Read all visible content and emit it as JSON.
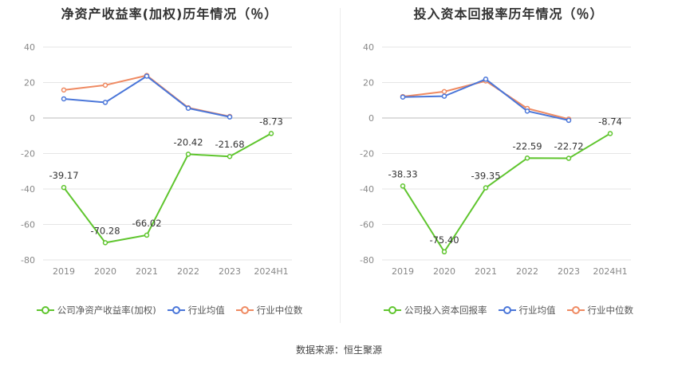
{
  "source": "数据来源：恒生聚源",
  "chart_data": [
    {
      "type": "line",
      "title": "净资产收益率(加权)历年情况（％）",
      "categories": [
        "2019",
        "2020",
        "2021",
        "2022",
        "2023",
        "2024H1"
      ],
      "ylim": [
        -80,
        40
      ],
      "yticks": [
        40,
        20,
        0,
        -20,
        -40,
        -60,
        -80
      ],
      "grid": true,
      "legend_position": "bottom",
      "series": [
        {
          "name": "公司净资产收益率(加权)",
          "color": "#5fc52e",
          "values": [
            -39.17,
            -70.28,
            -66.02,
            -20.42,
            -21.68,
            -8.73
          ],
          "labels": [
            "-39.17",
            "-70.28",
            "-66.02",
            "-20.42",
            "-21.68",
            "-8.73"
          ]
        },
        {
          "name": "行业均值",
          "color": "#4a76d9",
          "values": [
            10.8,
            8.8,
            23.6,
            5.5,
            0.6,
            null
          ]
        },
        {
          "name": "行业中位数",
          "color": "#ef8a62",
          "values": [
            15.8,
            18.5,
            24.0,
            5.8,
            0.9,
            null
          ]
        }
      ]
    },
    {
      "type": "line",
      "title": "投入资本回报率历年情况（％）",
      "categories": [
        "2019",
        "2020",
        "2021",
        "2022",
        "2023",
        "2024H1"
      ],
      "ylim": [
        -80,
        40
      ],
      "yticks": [
        40,
        20,
        0,
        -20,
        -40,
        -60,
        -80
      ],
      "grid": true,
      "legend_position": "bottom",
      "series": [
        {
          "name": "公司投入资本回报率",
          "color": "#5fc52e",
          "values": [
            -38.33,
            -75.4,
            -39.35,
            -22.59,
            -22.72,
            -8.74
          ],
          "labels": [
            "-38.33",
            "-75.40",
            "-39.35",
            "-22.59",
            "-22.72",
            "-8.74"
          ]
        },
        {
          "name": "行业均值",
          "color": "#4a76d9",
          "values": [
            11.8,
            12.3,
            21.9,
            3.9,
            -1.3,
            null
          ]
        },
        {
          "name": "行业中位数",
          "color": "#ef8a62",
          "values": [
            12.1,
            14.9,
            20.9,
            5.4,
            -0.6,
            null
          ]
        }
      ]
    }
  ]
}
